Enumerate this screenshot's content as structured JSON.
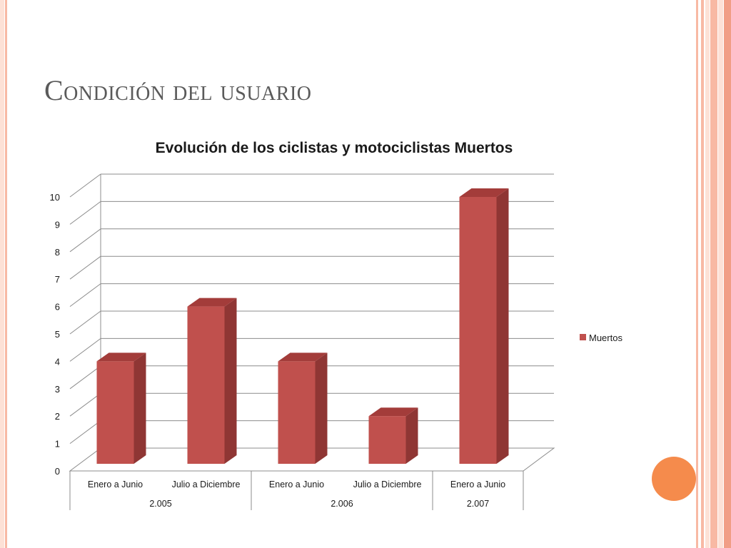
{
  "slide": {
    "title": "Condición del usuario"
  },
  "theme": {
    "title_color": "#5a5a5a",
    "accent_dot": "#f58b4c",
    "stripe_light": "#fde1d6",
    "stripe_mid": "#f8b9a4",
    "stripe_dark": "#f19e86"
  },
  "chart_data": {
    "type": "bar",
    "title": "Evolución de los ciclistas y motociclistas Muertos",
    "categories": [
      "Enero a Junio",
      "Julio a Diciembre",
      "Enero a Junio",
      "Julio a Diciembre",
      "Enero a Junio"
    ],
    "groups": [
      {
        "label": "2.005",
        "span": 2
      },
      {
        "label": "2.006",
        "span": 2
      },
      {
        "label": "2.007",
        "span": 1
      }
    ],
    "series": [
      {
        "name": "Muertos",
        "values": [
          4,
          6,
          4,
          2,
          10
        ],
        "color": "#c0504d"
      }
    ],
    "ylim": [
      0,
      10
    ],
    "yticks": [
      0,
      1,
      2,
      3,
      4,
      5,
      6,
      7,
      8,
      9,
      10
    ],
    "grid": true,
    "legend": "right",
    "style": "3d-column"
  }
}
